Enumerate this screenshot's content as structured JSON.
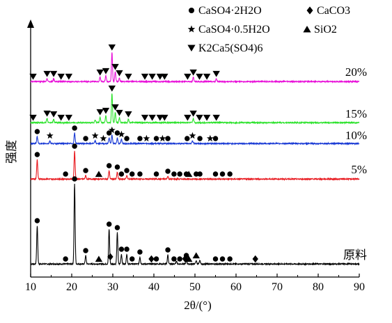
{
  "chart_data": {
    "type": "line",
    "xlabel": "2θ/(°)",
    "ylabel": "强度",
    "xlim": [
      10,
      90
    ],
    "xticks": [
      "10",
      "20",
      "30",
      "40",
      "50",
      "60",
      "70",
      "80",
      "90"
    ],
    "grid": false,
    "legend_position": "top-right",
    "legend": [
      {
        "marker": "circle",
        "label": "CaSO4·2H2O"
      },
      {
        "marker": "diamond",
        "label": "CaCO3"
      },
      {
        "marker": "star",
        "label": "CaSO4·0.5H2O"
      },
      {
        "marker": "triangle-up",
        "label": "SiO2"
      },
      {
        "marker": "triangle-down",
        "label": "K2Ca5(SO4)6"
      }
    ],
    "series": [
      {
        "name": "原料",
        "color": "#000000",
        "peaks": [
          [
            11.6,
            55
          ],
          [
            20.7,
            115
          ],
          [
            23.4,
            12
          ],
          [
            29.1,
            50
          ],
          [
            31.1,
            45
          ],
          [
            32.1,
            14
          ],
          [
            33.4,
            14
          ],
          [
            36.6,
            10
          ],
          [
            43.4,
            13
          ],
          [
            45.5,
            4
          ],
          [
            47.9,
            5
          ],
          [
            50.3,
            5
          ],
          [
            51.2,
            5
          ]
        ],
        "markers": [
          {
            "symbol": "circle",
            "x": [
              11.6,
              18.5,
              20.7,
              23.4,
              29.1,
              31.1,
              32.1,
              33.4,
              34.7,
              36.6,
              40.6,
              43.4,
              44.9,
              46.3,
              47.9,
              55.0,
              56.7,
              58.5
            ]
          },
          {
            "symbol": "diamond",
            "x": [
              29.4,
              39.4,
              47.6,
              64.7
            ]
          },
          {
            "symbol": "triangle-up",
            "x": [
              26.6,
              48.5,
              50.3
            ]
          },
          {
            "symbol": "triangle-down",
            "x": []
          }
        ]
      },
      {
        "name": "5%",
        "color": "#e8151b",
        "peaks": [
          [
            11.6,
            28
          ],
          [
            20.7,
            40
          ],
          [
            23.4,
            5
          ],
          [
            29.1,
            12
          ],
          [
            31.1,
            10
          ],
          [
            33.4,
            5
          ],
          [
            43.4,
            4
          ]
        ],
        "markers": [
          {
            "symbol": "circle",
            "x": [
              11.6,
              18.5,
              20.7,
              23.4,
              29.1,
              31.1,
              32.1,
              33.4,
              34.7,
              36.6,
              40.6,
              43.4,
              44.9,
              46.3,
              47.9,
              50.3,
              51.2,
              55.0,
              56.7,
              58.5
            ]
          },
          {
            "symbol": "triangle-up",
            "x": [
              26.6,
              48.5
            ]
          }
        ]
      },
      {
        "name": "10%",
        "color": "#1637d4",
        "peaks": [
          [
            11.6,
            10
          ],
          [
            14.7,
            4
          ],
          [
            20.7,
            15
          ],
          [
            25.7,
            4
          ],
          [
            29.1,
            8
          ],
          [
            29.8,
            12
          ],
          [
            31.1,
            8
          ],
          [
            32.1,
            6
          ],
          [
            49.4,
            4
          ]
        ],
        "markers": [
          {
            "symbol": "circle",
            "x": [
              11.6,
              20.7,
              23.4,
              29.1,
              31.1,
              33.4,
              36.6,
              40.6,
              43.4,
              48.1,
              51.2,
              55.0
            ]
          },
          {
            "symbol": "star",
            "x": [
              14.7,
              25.7,
              27.7,
              29.8,
              32.1,
              38.2,
              42.1,
              49.4,
              53.7
            ]
          }
        ]
      },
      {
        "name": "15%",
        "color": "#2be22b",
        "peaks": [
          [
            14.0,
            6
          ],
          [
            15.6,
            5
          ],
          [
            25.7,
            4
          ],
          [
            26.9,
            8
          ],
          [
            28.3,
            10
          ],
          [
            29.8,
            42
          ],
          [
            30.6,
            15
          ],
          [
            31.6,
            7
          ],
          [
            33.8,
            5
          ],
          [
            49.6,
            6
          ]
        ],
        "markers": [
          {
            "symbol": "triangle-down",
            "x": [
              10.6,
              14.0,
              15.6,
              17.4,
              19.3,
              26.9,
              28.3,
              29.8,
              30.6,
              31.6,
              33.8,
              37.8,
              39.6,
              41.5,
              42.6,
              48.2,
              49.6,
              51.1,
              52.9,
              55.2
            ]
          }
        ]
      },
      {
        "name": "20%",
        "color": "#e80ed8",
        "peaks": [
          [
            14.0,
            4
          ],
          [
            15.6,
            4
          ],
          [
            26.9,
            6
          ],
          [
            28.3,
            8
          ],
          [
            29.8,
            42
          ],
          [
            30.6,
            14
          ],
          [
            31.6,
            5
          ],
          [
            49.6,
            6
          ],
          [
            55.2,
            4
          ]
        ],
        "markers": [
          {
            "symbol": "triangle-down",
            "x": [
              10.6,
              14.0,
              15.6,
              17.4,
              19.3,
              26.9,
              28.3,
              29.8,
              30.6,
              31.6,
              33.8,
              37.8,
              39.6,
              41.5,
              42.6,
              48.2,
              49.6,
              51.1,
              52.9,
              55.2
            ]
          }
        ]
      }
    ]
  }
}
